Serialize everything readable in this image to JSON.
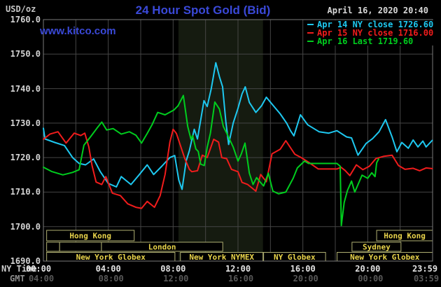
{
  "header": {
    "units": "USD/oz",
    "title": "24 Hour Spot Gold (Bid)",
    "timestamp": "April 16, 2020 20:40",
    "watermark": "www.kitco.com"
  },
  "axis": {
    "ny_time_label": "NY Time",
    "gmt_label": "GMT",
    "ny_ticks": [
      {
        "label": "00:00",
        "hour": 0
      },
      {
        "label": "04:00",
        "hour": 4
      },
      {
        "label": "08:00",
        "hour": 8
      },
      {
        "label": "12:00",
        "hour": 12
      },
      {
        "label": "16:00",
        "hour": 16
      },
      {
        "label": "20:00",
        "hour": 20
      },
      {
        "label": "23:59",
        "hour": 23.983
      }
    ],
    "gmt_ticks": [
      "04:00",
      "08:00",
      "12:00",
      "16:00",
      "20:00",
      "00:00",
      "03:59"
    ],
    "y_ticks": [
      "1760.0",
      "1750.0",
      "1740.0",
      "1730.0",
      "1720.0",
      "1710.0",
      "1700.0",
      "1690.0"
    ]
  },
  "legend": [
    {
      "label": "Apr 14 NY close 1726.60",
      "color": "#1ec8f0"
    },
    {
      "label": "Apr 15 NY close 1716.00",
      "color": "#f01c1c"
    },
    {
      "label": "Apr 16 Last 1719.60",
      "color": "#00cd1e"
    }
  ],
  "sessions": [
    {
      "row": 0,
      "label": "Hong Kong",
      "start": 0.2,
      "end": 5.6
    },
    {
      "row": 0,
      "label": "Hong Kong",
      "start": 20.55,
      "end": 24
    },
    {
      "row": 1,
      "label": "",
      "start": 0.2,
      "end": 1.0
    },
    {
      "row": 1,
      "label": "",
      "start": 1.0,
      "end": 3.58
    },
    {
      "row": 1,
      "label": "London",
      "start": 3.58,
      "end": 11.06
    },
    {
      "row": 1,
      "label": "Sydney",
      "start": 19.03,
      "end": 22.05
    },
    {
      "row": 2,
      "label": "New York Globex",
      "start": 0.2,
      "end": 8.11
    },
    {
      "row": 2,
      "label": "New York NYMEX",
      "start": 8.45,
      "end": 13.54
    },
    {
      "row": 2,
      "label": "NY Globex",
      "start": 13.58,
      "end": 17.4
    },
    {
      "row": 2,
      "label": "New York Globex",
      "start": 18.11,
      "end": 24
    }
  ],
  "chart_data": {
    "type": "line",
    "title": "24 Hour Spot Gold (Bid)",
    "ylabel": "USD/oz",
    "xlabel": "NY Time (hours 00:00-23:59)",
    "ylim": [
      1690,
      1760
    ],
    "xlim_hours": [
      0,
      24
    ],
    "grid": {
      "x_interval_hours": 2,
      "y_interval": 10
    },
    "nymex_floor_band_hours": [
      8.33,
      13.54
    ],
    "colors": {
      "grid": "#454545",
      "border": "#7a7a7a",
      "band": "#151b10",
      "session_border": "#b0b072",
      "session_text": "#e9d44b"
    },
    "series": [
      {
        "name": "Apr 14 NY close",
        "close": 1726.6,
        "color": "#1ec8f0",
        "points": [
          [
            0,
            1728.5
          ],
          [
            0.1,
            1725.4
          ],
          [
            0.7,
            1724.4
          ],
          [
            1.3,
            1723.5
          ],
          [
            1.8,
            1720.0
          ],
          [
            2.2,
            1718.3
          ],
          [
            2.6,
            1717.9
          ],
          [
            3.1,
            1719.6
          ],
          [
            3.5,
            1716.0
          ],
          [
            4.0,
            1712.5
          ],
          [
            4.5,
            1711.5
          ],
          [
            4.8,
            1714.5
          ],
          [
            5.4,
            1712.2
          ],
          [
            5.9,
            1715.0
          ],
          [
            6.4,
            1717.9
          ],
          [
            6.8,
            1715.1
          ],
          [
            7.3,
            1717.5
          ],
          [
            7.8,
            1720.0
          ],
          [
            8.1,
            1720.6
          ],
          [
            8.35,
            1713.5
          ],
          [
            8.55,
            1710.8
          ],
          [
            8.8,
            1719.0
          ],
          [
            9.0,
            1722.0
          ],
          [
            9.3,
            1728.2
          ],
          [
            9.5,
            1725.4
          ],
          [
            9.9,
            1736.5
          ],
          [
            10.1,
            1734.8
          ],
          [
            10.35,
            1740.0
          ],
          [
            10.63,
            1747.5
          ],
          [
            10.85,
            1743.5
          ],
          [
            11.05,
            1740.5
          ],
          [
            11.25,
            1730.5
          ],
          [
            11.42,
            1723.8
          ],
          [
            11.7,
            1730.0
          ],
          [
            12.0,
            1734.3
          ],
          [
            12.25,
            1738.5
          ],
          [
            12.45,
            1740.5
          ],
          [
            12.7,
            1736.0
          ],
          [
            13.1,
            1733.1
          ],
          [
            13.45,
            1735.0
          ],
          [
            13.75,
            1737.5
          ],
          [
            14.1,
            1735.5
          ],
          [
            14.6,
            1732.7
          ],
          [
            15.0,
            1730.0
          ],
          [
            15.25,
            1727.7
          ],
          [
            15.45,
            1726.3
          ],
          [
            15.85,
            1732.4
          ],
          [
            16.3,
            1729.5
          ],
          [
            17.0,
            1727.5
          ],
          [
            17.6,
            1727.1
          ],
          [
            18.1,
            1727.8
          ],
          [
            18.7,
            1726.0
          ],
          [
            19.0,
            1725.7
          ],
          [
            19.4,
            1720.7
          ],
          [
            19.9,
            1724.1
          ],
          [
            20.3,
            1725.5
          ],
          [
            20.7,
            1727.5
          ],
          [
            21.1,
            1731.0
          ],
          [
            21.5,
            1726.0
          ],
          [
            21.8,
            1721.7
          ],
          [
            22.1,
            1724.4
          ],
          [
            22.5,
            1722.7
          ],
          [
            22.8,
            1725.1
          ],
          [
            23.1,
            1723.1
          ],
          [
            23.4,
            1724.8
          ],
          [
            23.6,
            1723.1
          ],
          [
            23.98,
            1725.0
          ]
        ]
      },
      {
        "name": "Apr 15 NY close",
        "close": 1716.0,
        "color": "#f01c1c",
        "points": [
          [
            0,
            1725.3
          ],
          [
            0.4,
            1726.8
          ],
          [
            0.9,
            1727.5
          ],
          [
            1.4,
            1724.2
          ],
          [
            1.9,
            1727.1
          ],
          [
            2.3,
            1726.4
          ],
          [
            2.55,
            1727.1
          ],
          [
            2.8,
            1723.1
          ],
          [
            3.0,
            1717.7
          ],
          [
            3.25,
            1712.9
          ],
          [
            3.6,
            1712.2
          ],
          [
            3.85,
            1714.5
          ],
          [
            4.25,
            1709.7
          ],
          [
            4.75,
            1709.0
          ],
          [
            5.2,
            1706.6
          ],
          [
            5.7,
            1705.6
          ],
          [
            6.05,
            1705.3
          ],
          [
            6.4,
            1707.3
          ],
          [
            6.85,
            1705.6
          ],
          [
            7.2,
            1709.0
          ],
          [
            7.5,
            1715.1
          ],
          [
            7.8,
            1724.5
          ],
          [
            8.0,
            1728.2
          ],
          [
            8.2,
            1727.0
          ],
          [
            8.7,
            1720.0
          ],
          [
            9.0,
            1716.6
          ],
          [
            9.15,
            1715.9
          ],
          [
            9.5,
            1716.2
          ],
          [
            9.8,
            1720.7
          ],
          [
            10.1,
            1720.0
          ],
          [
            10.5,
            1725.3
          ],
          [
            10.8,
            1724.5
          ],
          [
            11.0,
            1720.0
          ],
          [
            11.3,
            1719.7
          ],
          [
            11.6,
            1716.6
          ],
          [
            12.0,
            1715.9
          ],
          [
            12.25,
            1712.8
          ],
          [
            12.6,
            1712.2
          ],
          [
            13.1,
            1710.3
          ],
          [
            13.4,
            1715.1
          ],
          [
            13.75,
            1713.0
          ],
          [
            14.1,
            1721.1
          ],
          [
            14.6,
            1722.4
          ],
          [
            14.95,
            1724.9
          ],
          [
            15.5,
            1721.0
          ],
          [
            15.9,
            1720.0
          ],
          [
            16.4,
            1718.5
          ],
          [
            16.95,
            1716.7
          ],
          [
            18.1,
            1716.7
          ],
          [
            18.35,
            1717.2
          ],
          [
            18.6,
            1716.3
          ],
          [
            18.9,
            1714.8
          ],
          [
            19.3,
            1717.9
          ],
          [
            19.7,
            1716.5
          ],
          [
            20.1,
            1717.5
          ],
          [
            20.5,
            1719.7
          ],
          [
            21.0,
            1720.4
          ],
          [
            21.5,
            1720.7
          ],
          [
            21.9,
            1717.7
          ],
          [
            22.3,
            1716.6
          ],
          [
            22.8,
            1716.9
          ],
          [
            23.2,
            1716.2
          ],
          [
            23.6,
            1717.0
          ],
          [
            23.98,
            1716.8
          ]
        ]
      },
      {
        "name": "Apr 16 Last",
        "close": 1719.6,
        "color": "#00cd1e",
        "points": [
          [
            0,
            1717.2
          ],
          [
            0.5,
            1716.0
          ],
          [
            1.2,
            1715.0
          ],
          [
            1.8,
            1715.7
          ],
          [
            2.2,
            1716.5
          ],
          [
            2.5,
            1723.6
          ],
          [
            2.9,
            1726.0
          ],
          [
            3.3,
            1728.5
          ],
          [
            3.6,
            1730.3
          ],
          [
            3.9,
            1728.0
          ],
          [
            4.3,
            1728.4
          ],
          [
            4.8,
            1726.8
          ],
          [
            5.3,
            1727.5
          ],
          [
            5.7,
            1726.5
          ],
          [
            6.05,
            1724.2
          ],
          [
            6.4,
            1727.0
          ],
          [
            6.7,
            1729.5
          ],
          [
            7.05,
            1733.1
          ],
          [
            7.5,
            1732.4
          ],
          [
            8.05,
            1733.8
          ],
          [
            8.3,
            1735.0
          ],
          [
            8.63,
            1738.0
          ],
          [
            8.9,
            1729.0
          ],
          [
            9.1,
            1725.3
          ],
          [
            9.2,
            1726.4
          ],
          [
            9.4,
            1722.5
          ],
          [
            9.55,
            1721.8
          ],
          [
            9.7,
            1718.1
          ],
          [
            9.92,
            1717.7
          ],
          [
            10.1,
            1723.0
          ],
          [
            10.3,
            1727.1
          ],
          [
            10.57,
            1736.1
          ],
          [
            10.85,
            1734.1
          ],
          [
            11.1,
            1729.0
          ],
          [
            11.3,
            1727.1
          ],
          [
            11.7,
            1723.1
          ],
          [
            12.0,
            1719.0
          ],
          [
            12.2,
            1721.0
          ],
          [
            12.43,
            1724.2
          ],
          [
            12.7,
            1715.5
          ],
          [
            12.93,
            1712.2
          ],
          [
            13.15,
            1714.2
          ],
          [
            13.35,
            1713.0
          ],
          [
            13.58,
            1711.8
          ],
          [
            13.87,
            1715.5
          ],
          [
            14.15,
            1710.3
          ],
          [
            14.5,
            1709.5
          ],
          [
            14.95,
            1710.0
          ],
          [
            15.4,
            1714.0
          ],
          [
            15.66,
            1717.0
          ],
          [
            16.1,
            1719.0
          ],
          [
            16.35,
            1718.3
          ],
          [
            18.1,
            1718.3
          ],
          [
            18.3,
            1717.5
          ],
          [
            18.37,
            1700.3
          ],
          [
            18.55,
            1707.0
          ],
          [
            18.75,
            1710.5
          ],
          [
            19.0,
            1713.2
          ],
          [
            19.2,
            1710.0
          ],
          [
            19.65,
            1714.9
          ],
          [
            20.0,
            1714.0
          ],
          [
            20.25,
            1715.6
          ],
          [
            20.45,
            1714.5
          ],
          [
            20.55,
            1718.5
          ],
          [
            20.67,
            1719.6
          ]
        ]
      }
    ]
  }
}
